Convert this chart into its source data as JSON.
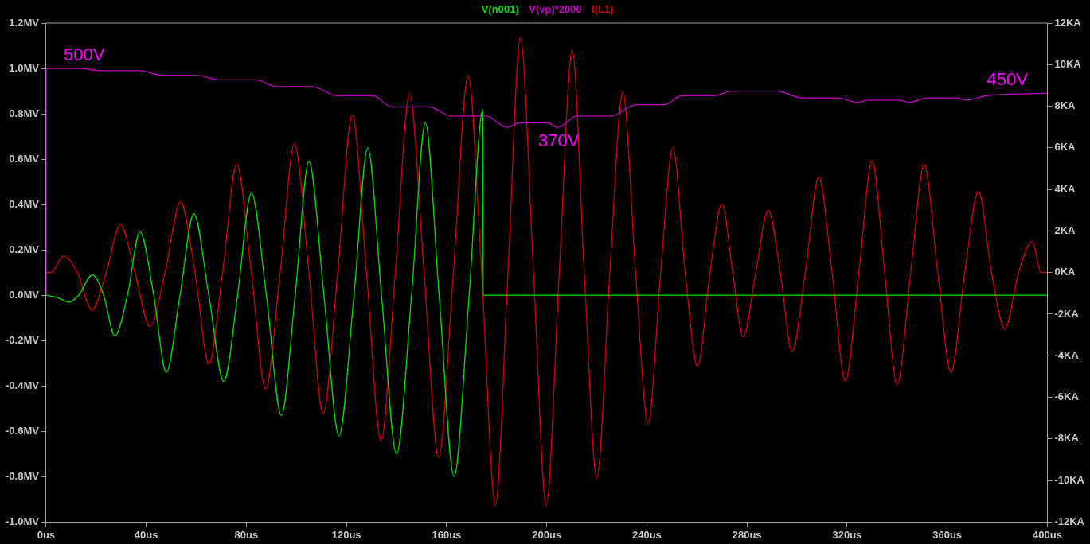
{
  "chart_data": {
    "type": "line",
    "legend": "top",
    "marker": "none",
    "line_style": "solid",
    "grid": false,
    "xlim": [
      0,
      400
    ],
    "xticks": [
      {
        "value": 0,
        "label": "0us"
      },
      {
        "value": 40,
        "label": "40us"
      },
      {
        "value": 80,
        "label": "80us"
      },
      {
        "value": 120,
        "label": "120us"
      },
      {
        "value": 160,
        "label": "160us"
      },
      {
        "value": 200,
        "label": "200us"
      },
      {
        "value": 240,
        "label": "240us"
      },
      {
        "value": 280,
        "label": "280us"
      },
      {
        "value": 320,
        "label": "320us"
      },
      {
        "value": 360,
        "label": "360us"
      },
      {
        "value": 400,
        "label": "400us"
      }
    ],
    "ylim": [
      -1.0,
      1.2
    ],
    "yticks": [
      {
        "value": -1.0,
        "label": "-1.0MV"
      },
      {
        "value": -0.8,
        "label": "-0.8MV"
      },
      {
        "value": -0.6,
        "label": "-0.6MV"
      },
      {
        "value": -0.4,
        "label": "-0.4MV"
      },
      {
        "value": -0.2,
        "label": "-0.2MV"
      },
      {
        "value": 0,
        "label": "0.0MV"
      },
      {
        "value": 0.2,
        "label": "0.2MV"
      },
      {
        "value": 0.4,
        "label": "0.4MV"
      },
      {
        "value": 0.6,
        "label": "0.6MV"
      },
      {
        "value": 0.8,
        "label": "0.8MV"
      },
      {
        "value": 1.0,
        "label": "1.0MV"
      },
      {
        "value": 1.2,
        "label": "1.2MV"
      }
    ],
    "y2lim": [
      -12,
      12
    ],
    "y2ticks": [
      {
        "value": -12,
        "label": "-12KA"
      },
      {
        "value": -10,
        "label": "-10KA"
      },
      {
        "value": -8,
        "label": "-8KA"
      },
      {
        "value": -6,
        "label": "-6KA"
      },
      {
        "value": -4,
        "label": "-4KA"
      },
      {
        "value": -2,
        "label": "-2KA"
      },
      {
        "value": 0,
        "label": "0KA"
      },
      {
        "value": 2,
        "label": "2KA"
      },
      {
        "value": 4,
        "label": "4KA"
      },
      {
        "value": 6,
        "label": "6KA"
      },
      {
        "value": 8,
        "label": "8KA"
      },
      {
        "value": 10,
        "label": "10KA"
      },
      {
        "value": 12,
        "label": "12KA"
      }
    ],
    "series": [
      {
        "name": "V(n001)",
        "color": "#00e000",
        "x": [
          0,
          4.5,
          9,
          13,
          18.5,
          23,
          27.5,
          32.5,
          37.5,
          43,
          48,
          53.5,
          59,
          65,
          71,
          76.5,
          82,
          88,
          94,
          99.5,
          105,
          111,
          117,
          123,
          128.5,
          134,
          140,
          146,
          151.5,
          157,
          163,
          169,
          174.5,
          174.6,
          200,
          250,
          300,
          350,
          400
        ],
        "values": [
          0,
          -0.01,
          -0.03,
          0,
          0.09,
          0,
          -0.18,
          0,
          0.28,
          0,
          -0.34,
          0,
          0.36,
          0,
          -0.38,
          0,
          0.45,
          0,
          -0.53,
          0,
          0.59,
          0,
          -0.62,
          0,
          0.65,
          0,
          -0.7,
          0,
          0.76,
          0,
          -0.8,
          0,
          0.82,
          0,
          0,
          0,
          0,
          0,
          0
        ]
      },
      {
        "name": "V(vp)*2000",
        "color": "#c000c0",
        "x": [
          0,
          0,
          13,
          21.7,
          37.6,
          46,
          60,
          69,
          84,
          92,
          106.5,
          116,
          130.5,
          138,
          153,
          162,
          176,
          184,
          189,
          200.3,
          204.5,
          212,
          225.7,
          235.6,
          247,
          254,
          267,
          274,
          292,
          302,
          316,
          324,
          329,
          340.5,
          345,
          352,
          364,
          367.5,
          376,
          400
        ],
        "values": [
          0,
          1.0,
          1.0,
          0.99,
          0.99,
          0.97,
          0.97,
          0.95,
          0.95,
          0.92,
          0.92,
          0.88,
          0.88,
          0.83,
          0.83,
          0.79,
          0.79,
          0.74,
          0.76,
          0.76,
          0.74,
          0.79,
          0.79,
          0.84,
          0.84,
          0.88,
          0.88,
          0.9,
          0.9,
          0.87,
          0.87,
          0.85,
          0.86,
          0.86,
          0.85,
          0.87,
          0.87,
          0.86,
          0.88,
          0.89
        ]
      },
      {
        "name": "I(L1)",
        "color": "#d00000",
        "axis": "y2",
        "x": [
          0,
          2,
          7,
          12.5,
          18.3,
          24,
          29.7,
          35.5,
          41.5,
          47.5,
          53.7,
          59.5,
          65,
          70.5,
          76.2,
          82,
          87.7,
          93.5,
          99.2,
          105,
          110.7,
          116.5,
          122.3,
          128,
          133.8,
          139.5,
          145.2,
          151,
          156.8,
          162.7,
          168.6,
          174,
          179.5,
          184.5,
          189.5,
          194.7,
          199.8,
          205,
          210.2,
          215,
          220,
          225.2,
          230.4,
          235.5,
          240.5,
          245.5,
          250.4,
          255.3,
          260.3,
          265.2,
          270,
          274.3,
          278.5,
          283.5,
          288.5,
          293.3,
          298,
          303.3,
          308.7,
          314,
          319.3,
          324.7,
          330,
          335,
          340,
          345.4,
          350.8,
          356.2,
          361.5,
          367,
          372.5,
          377.7,
          383,
          388.5,
          394,
          397.5,
          400
        ],
        "values": [
          0,
          0,
          0.8,
          0,
          -1.8,
          0,
          2.3,
          0,
          -2.6,
          0,
          3.4,
          0,
          -4.4,
          0,
          5.2,
          0,
          -5.6,
          0,
          6.2,
          0,
          -6.8,
          0,
          7.6,
          0,
          -8.1,
          0,
          8.6,
          0,
          -8.9,
          0,
          9.5,
          0,
          -11.2,
          0,
          11.3,
          0,
          -11.2,
          0,
          10.7,
          0,
          -9.9,
          0,
          8.7,
          0,
          -7.3,
          0,
          6.0,
          0,
          -4.5,
          0,
          3.3,
          0,
          -3.1,
          0,
          3.0,
          0,
          -3.8,
          0,
          4.6,
          0,
          -5.2,
          0,
          5.4,
          0,
          -5.4,
          0,
          5.2,
          0,
          -4.8,
          0,
          3.9,
          0,
          -2.7,
          0,
          1.5,
          0,
          0
        ]
      }
    ],
    "annotations": [
      "500V",
      "370V",
      "450V"
    ]
  }
}
